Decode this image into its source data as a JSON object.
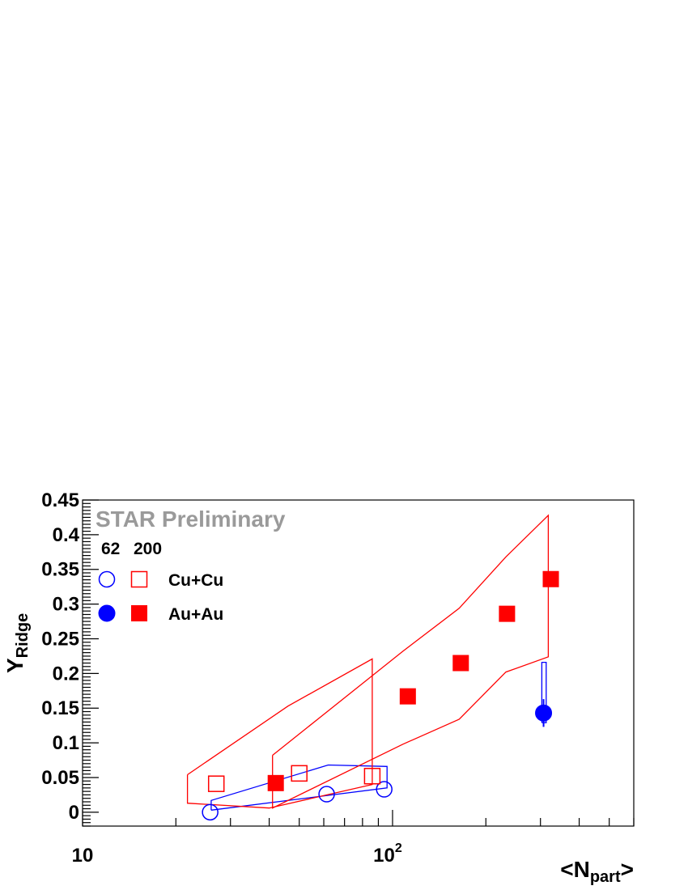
{
  "chart_data": {
    "type": "scatter",
    "annotation": "STAR Preliminary",
    "xlabel": {
      "main": "<N",
      "sub": "part",
      "end": ">"
    },
    "ylabel": {
      "main": "Y",
      "sub": "Ridge"
    },
    "xscale": "log",
    "xlim": [
      10,
      600
    ],
    "ylim": [
      -0.02,
      0.45
    ],
    "grid": false,
    "legend": {
      "placement": "top-left",
      "headers": [
        "62",
        "200"
      ],
      "rows": [
        {
          "label": "Cu+Cu",
          "markers": [
            "open-circle-blue",
            "open-square-red"
          ]
        },
        {
          "label": "Au+Au",
          "markers": [
            "filled-circle-blue",
            "filled-square-red"
          ]
        }
      ]
    },
    "xticks": [
      {
        "value": 10,
        "label": "10"
      },
      {
        "value": 100,
        "label": "10",
        "sup": "2"
      }
    ],
    "yticks": [
      {
        "value": 0,
        "label": "0"
      },
      {
        "value": 0.05,
        "label": "0.05"
      },
      {
        "value": 0.1,
        "label": "0.1"
      },
      {
        "value": 0.15,
        "label": "0.15"
      },
      {
        "value": 0.2,
        "label": "0.2"
      },
      {
        "value": 0.25,
        "label": "0.25"
      },
      {
        "value": 0.3,
        "label": "0.3"
      },
      {
        "value": 0.35,
        "label": "0.35"
      },
      {
        "value": 0.4,
        "label": "0.4"
      },
      {
        "value": 0.45,
        "label": "0.45"
      }
    ],
    "series": [
      {
        "name": "Cu+Cu 62",
        "marker": "open-circle",
        "color": "#0000ff",
        "points": [
          [
            25.8,
            0.0
          ],
          [
            61.3,
            0.026
          ],
          [
            94.0,
            0.033
          ]
        ],
        "band": [
          [
            26.0,
            0.003
          ],
          [
            26.0,
            0.017
          ],
          [
            62.0,
            0.068
          ],
          [
            96.0,
            0.066
          ],
          [
            96.0,
            0.035
          ],
          [
            26.0,
            0.003
          ]
        ]
      },
      {
        "name": "Cu+Cu 200",
        "marker": "open-square",
        "color": "#ff0000",
        "points": [
          [
            27.0,
            0.041
          ],
          [
            50.0,
            0.056
          ],
          [
            86.0,
            0.052
          ]
        ],
        "band": [
          [
            21.8,
            0.054
          ],
          [
            21.8,
            0.013
          ],
          [
            40.0,
            0.006
          ],
          [
            86.0,
            0.04
          ],
          [
            86.0,
            0.221
          ],
          [
            46.0,
            0.153
          ],
          [
            21.8,
            0.054
          ]
        ]
      },
      {
        "name": "Au+Au 62",
        "marker": "filled-circle",
        "color": "#0000ff",
        "points": [
          [
            307.0,
            0.143
          ]
        ],
        "errors": [
          0.02
        ],
        "band": [
          [
            303.0,
            0.129
          ],
          [
            303.0,
            0.216
          ],
          [
            313.0,
            0.216
          ],
          [
            313.0,
            0.129
          ],
          [
            303.0,
            0.129
          ]
        ]
      },
      {
        "name": "Au+Au 200",
        "marker": "filled-square",
        "color": "#ff0000",
        "points": [
          [
            42.0,
            0.042
          ],
          [
            112.0,
            0.167
          ],
          [
            166.0,
            0.215
          ],
          [
            234.0,
            0.286
          ],
          [
            324.0,
            0.336
          ]
        ],
        "band": [
          [
            41.0,
            0.082
          ],
          [
            41.0,
            0.006
          ],
          [
            108.0,
            0.098
          ],
          [
            164.0,
            0.134
          ],
          [
            232.0,
            0.202
          ],
          [
            318.0,
            0.224
          ],
          [
            318.0,
            0.428
          ],
          [
            232.0,
            0.368
          ],
          [
            164.0,
            0.294
          ],
          [
            108.0,
            0.232
          ],
          [
            41.0,
            0.082
          ]
        ]
      }
    ]
  }
}
